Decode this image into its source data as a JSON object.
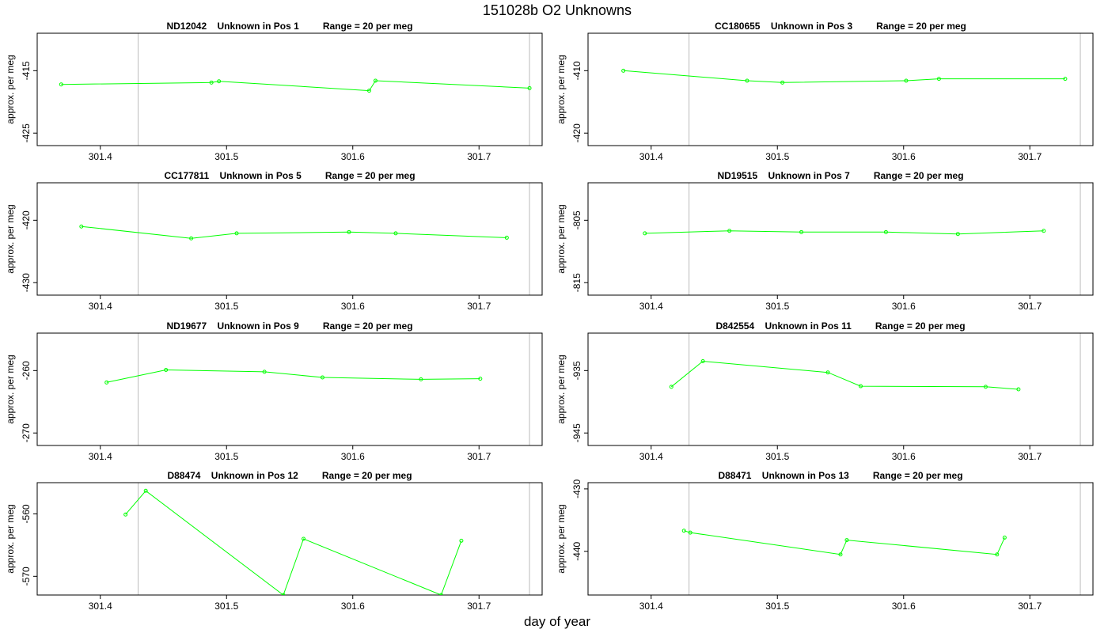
{
  "title": "151028b  O2 Unknowns",
  "xlabel": "day of year",
  "colors": {
    "series": "#00ff00",
    "frame": "#000000",
    "guide": "#bbbbbb"
  },
  "chart_data": [
    {
      "type": "line",
      "title": "ND12042    Unknown in Pos 1         Range = 20 per meg",
      "ylabel": "approx. per meg",
      "xlim": [
        301.35,
        301.75
      ],
      "ylim": [
        -427,
        -409
      ],
      "x_ticks": [
        301.4,
        301.5,
        301.6,
        301.7
      ],
      "x_tick_labels": [
        "301.4",
        "301.5",
        "301.6",
        "301.7"
      ],
      "y_ticks": [
        -415,
        -425
      ],
      "y_tick_labels": [
        "-415",
        "-425"
      ],
      "vlines": [
        301.43,
        301.74
      ],
      "x": [
        301.369,
        301.488,
        301.494,
        301.613,
        301.618,
        301.74
      ],
      "y": [
        -417.2,
        -416.9,
        -416.7,
        -418.2,
        -416.6,
        -417.8
      ]
    },
    {
      "type": "line",
      "title": "CC180655    Unknown in Pos 3         Range = 20 per meg",
      "ylabel": "approx. per meg",
      "xlim": [
        301.35,
        301.75
      ],
      "ylim": [
        -422,
        -404
      ],
      "x_ticks": [
        301.4,
        301.5,
        301.6,
        301.7
      ],
      "x_tick_labels": [
        "301.4",
        "301.5",
        "301.6",
        "301.7"
      ],
      "y_ticks": [
        -410,
        -420
      ],
      "y_tick_labels": [
        "-410",
        "-420"
      ],
      "vlines": [
        301.43,
        301.74
      ],
      "x": [
        301.378,
        301.476,
        301.504,
        301.602,
        301.628,
        301.728
      ],
      "y": [
        -410.0,
        -411.6,
        -411.9,
        -411.6,
        -411.3,
        -411.3
      ]
    },
    {
      "type": "line",
      "title": "CC177811    Unknown in Pos 5         Range = 20 per meg",
      "ylabel": "approx. per meg",
      "xlim": [
        301.35,
        301.75
      ],
      "ylim": [
        -432,
        -414
      ],
      "x_ticks": [
        301.4,
        301.5,
        301.6,
        301.7
      ],
      "x_tick_labels": [
        "301.4",
        "301.5",
        "301.6",
        "301.7"
      ],
      "y_ticks": [
        -420,
        -430
      ],
      "y_tick_labels": [
        "-420",
        "-430"
      ],
      "vlines": [
        301.43,
        301.74
      ],
      "x": [
        301.385,
        301.472,
        301.508,
        301.597,
        301.634,
        301.722
      ],
      "y": [
        -421.0,
        -422.9,
        -422.1,
        -421.9,
        -422.1,
        -422.8
      ]
    },
    {
      "type": "line",
      "title": "ND19515    Unknown in Pos 7         Range = 20 per meg",
      "ylabel": "approx. per meg",
      "xlim": [
        301.35,
        301.75
      ],
      "ylim": [
        -817,
        -799
      ],
      "x_ticks": [
        301.4,
        301.5,
        301.6,
        301.7
      ],
      "x_tick_labels": [
        "301.4",
        "301.5",
        "301.6",
        "301.7"
      ],
      "y_ticks": [
        -805,
        -815
      ],
      "y_tick_labels": [
        "-805",
        "-815"
      ],
      "vlines": [
        301.43,
        301.74
      ],
      "x": [
        301.395,
        301.462,
        301.519,
        301.586,
        301.643,
        301.711
      ],
      "y": [
        -807.1,
        -806.7,
        -806.9,
        -806.9,
        -807.2,
        -806.7
      ]
    },
    {
      "type": "line",
      "title": "ND19677    Unknown in Pos 9         Range = 20 per meg",
      "ylabel": "approx. per meg",
      "xlim": [
        301.35,
        301.75
      ],
      "ylim": [
        -272,
        -254
      ],
      "x_ticks": [
        301.4,
        301.5,
        301.6,
        301.7
      ],
      "x_tick_labels": [
        "301.4",
        "301.5",
        "301.6",
        "301.7"
      ],
      "y_ticks": [
        -260,
        -270
      ],
      "y_tick_labels": [
        "-260",
        "-270"
      ],
      "vlines": [
        301.43,
        301.74
      ],
      "x": [
        301.405,
        301.452,
        301.53,
        301.576,
        301.654,
        301.701
      ],
      "y": [
        -261.9,
        -259.9,
        -260.2,
        -261.1,
        -261.4,
        -261.3
      ]
    },
    {
      "type": "line",
      "title": "D842554    Unknown in Pos 11         Range = 20 per meg",
      "ylabel": "approx. per meg",
      "xlim": [
        301.35,
        301.75
      ],
      "ylim": [
        -947,
        -929
      ],
      "x_ticks": [
        301.4,
        301.5,
        301.6,
        301.7
      ],
      "x_tick_labels": [
        "301.4",
        "301.5",
        "301.6",
        "301.7"
      ],
      "y_ticks": [
        -935,
        -945
      ],
      "y_tick_labels": [
        "-935",
        "-945"
      ],
      "vlines": [
        301.43,
        301.74
      ],
      "x": [
        301.416,
        301.441,
        301.54,
        301.566,
        301.665,
        301.691
      ],
      "y": [
        -937.6,
        -933.5,
        -935.3,
        -937.5,
        -937.6,
        -938.0
      ]
    },
    {
      "type": "line",
      "title": "D88474    Unknown in Pos 12         Range = 20 per meg",
      "ylabel": "approx. per meg",
      "xlim": [
        301.35,
        301.75
      ],
      "ylim": [
        -573,
        -555
      ],
      "x_ticks": [
        301.4,
        301.5,
        301.6,
        301.7
      ],
      "x_tick_labels": [
        "301.4",
        "301.5",
        "301.6",
        "301.7"
      ],
      "y_ticks": [
        -560,
        -570
      ],
      "y_tick_labels": [
        "-560",
        "-570"
      ],
      "vlines": [
        301.43,
        301.74
      ],
      "x": [
        301.42,
        301.436,
        301.545,
        301.561,
        301.67,
        301.686
      ],
      "y": [
        -560.1,
        -556.3,
        -573.0,
        -564.0,
        -573.0,
        -564.3
      ]
    },
    {
      "type": "line",
      "title": "D88471    Unknown in Pos 13         Range = 20 per meg",
      "ylabel": "approx. per meg",
      "xlim": [
        301.35,
        301.75
      ],
      "ylim": [
        -447,
        -429
      ],
      "x_ticks": [
        301.4,
        301.5,
        301.6,
        301.7
      ],
      "x_tick_labels": [
        "301.4",
        "301.5",
        "301.6",
        "301.7"
      ],
      "y_ticks": [
        -430,
        -440
      ],
      "y_tick_labels": [
        "-430",
        "-440"
      ],
      "vlines": [
        301.43,
        301.74
      ],
      "x": [
        301.426,
        301.431,
        301.55,
        301.555,
        301.674,
        301.68
      ],
      "y": [
        -436.7,
        -437.0,
        -440.5,
        -438.2,
        -440.5,
        -437.8
      ]
    }
  ]
}
